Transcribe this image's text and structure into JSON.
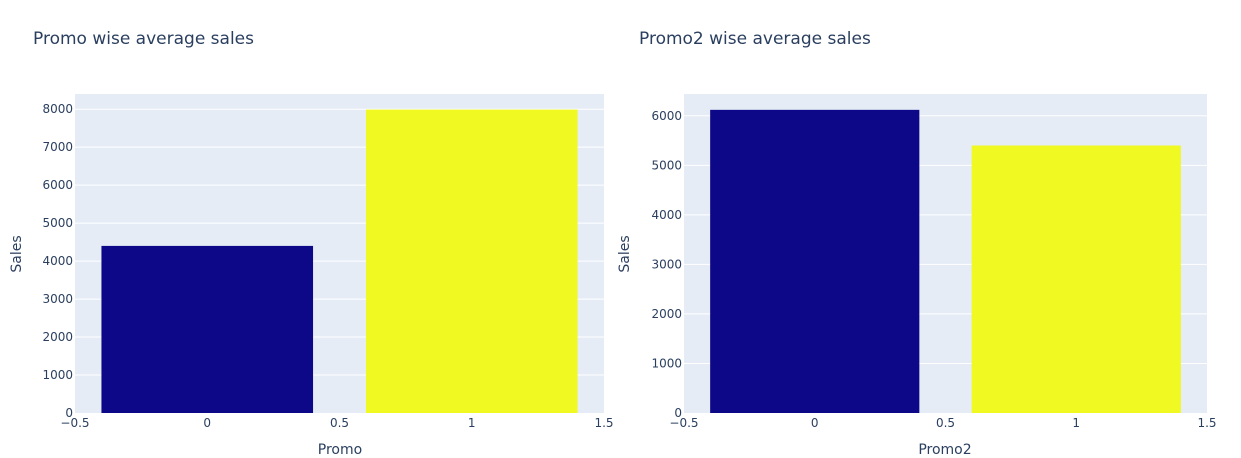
{
  "colors": {
    "plot_bg": "#e5ecf6",
    "grid": "#ffffff",
    "text": "#2a3f5f",
    "bar_0": "#0d0887",
    "bar_1": "#f0f921"
  },
  "chart_data": [
    {
      "type": "bar",
      "title": "Promo wise average sales",
      "xlabel": "Promo",
      "ylabel": "Sales",
      "x": [
        0,
        1
      ],
      "values": [
        4400,
        7990
      ],
      "bar_colors": [
        "#0d0887",
        "#f0f921"
      ],
      "xlim": [
        -0.5,
        1.5
      ],
      "ylim": [
        0,
        8400
      ],
      "x_ticks": [
        -0.5,
        0,
        0.5,
        1,
        1.5
      ],
      "x_tick_labels": [
        "−0.5",
        "0",
        "0.5",
        "1",
        "1.5"
      ],
      "y_ticks": [
        0,
        1000,
        2000,
        3000,
        4000,
        5000,
        6000,
        7000,
        8000
      ],
      "y_tick_labels": [
        "0",
        "1000",
        "2000",
        "3000",
        "4000",
        "5000",
        "6000",
        "7000",
        "8000"
      ],
      "grid": true,
      "legend": "none"
    },
    {
      "type": "bar",
      "title": "Promo2 wise average sales",
      "xlabel": "Promo2",
      "ylabel": "Sales",
      "x": [
        0,
        1
      ],
      "values": [
        6120,
        5400
      ],
      "bar_colors": [
        "#0d0887",
        "#f0f921"
      ],
      "xlim": [
        -0.5,
        1.5
      ],
      "ylim": [
        0,
        6440
      ],
      "x_ticks": [
        -0.5,
        0,
        0.5,
        1,
        1.5
      ],
      "x_tick_labels": [
        "−0.5",
        "0",
        "0.5",
        "1",
        "1.5"
      ],
      "y_ticks": [
        0,
        1000,
        2000,
        3000,
        4000,
        5000,
        6000
      ],
      "y_tick_labels": [
        "0",
        "1000",
        "2000",
        "3000",
        "4000",
        "5000",
        "6000"
      ],
      "grid": true,
      "legend": "none"
    }
  ]
}
